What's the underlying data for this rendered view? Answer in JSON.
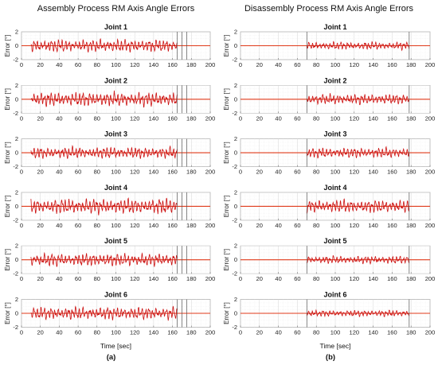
{
  "chart_data": [
    {
      "type": "line",
      "title": "Assembly Process RM Axis Angle Errors",
      "subfigure_label": "(a)",
      "xlabel": "Time [sec]",
      "ylabel": "Error [°]",
      "xlim": [
        0,
        200
      ],
      "ylim": [
        -2,
        2
      ],
      "xticks": [
        0,
        20,
        40,
        60,
        80,
        100,
        120,
        140,
        160,
        180,
        200
      ],
      "yticks": [
        -2,
        0,
        2
      ],
      "grid": true,
      "active_interval": [
        10,
        165
      ],
      "markers_at": [
        165,
        170,
        175
      ],
      "colors": {
        "signal": "#cc1111",
        "baseline": "#e03a1a",
        "markers": "#555555"
      },
      "panels": [
        {
          "title": "Joint 1",
          "amplitude": 1.0
        },
        {
          "title": "Joint 2",
          "amplitude": 1.1
        },
        {
          "title": "Joint 3",
          "amplitude": 0.9
        },
        {
          "title": "Joint 4",
          "amplitude": 1.2
        },
        {
          "title": "Joint 5",
          "amplitude": 1.0
        },
        {
          "title": "Joint 6",
          "amplitude": 1.0
        }
      ]
    },
    {
      "type": "line",
      "title": "Disassembly Process RM Axis Angle Errors",
      "subfigure_label": "(b)",
      "xlabel": "Time [sec]",
      "ylabel": "Error [°]",
      "xlim": [
        0,
        200
      ],
      "ylim": [
        -2,
        2
      ],
      "xticks": [
        0,
        20,
        40,
        60,
        80,
        100,
        120,
        140,
        160,
        180,
        200
      ],
      "yticks": [
        -2,
        0,
        2
      ],
      "grid": true,
      "active_interval": [
        70,
        178
      ],
      "markers_at": [
        70,
        178
      ],
      "colors": {
        "signal": "#cc1111",
        "baseline": "#e03a1a",
        "markers": "#555555"
      },
      "panels": [
        {
          "title": "Joint 1",
          "amplitude": 0.6
        },
        {
          "title": "Joint 2",
          "amplitude": 0.8
        },
        {
          "title": "Joint 3",
          "amplitude": 0.8
        },
        {
          "title": "Joint 4",
          "amplitude": 1.0
        },
        {
          "title": "Joint 5",
          "amplitude": 0.6
        },
        {
          "title": "Joint 6",
          "amplitude": 0.5
        }
      ]
    }
  ]
}
